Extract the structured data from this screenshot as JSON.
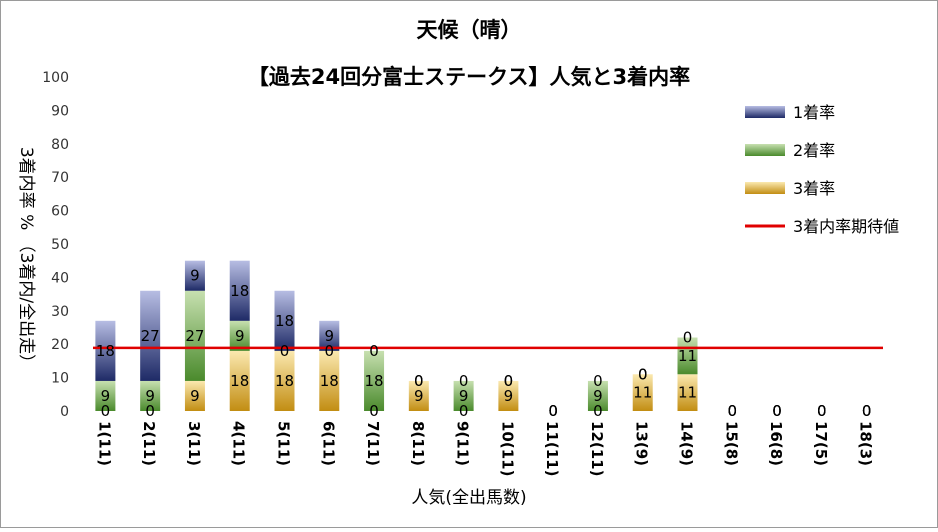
{
  "chart_data": {
    "type": "bar",
    "stacked": true,
    "title": "天候（晴）",
    "subtitle": "【過去24回分富士ステークス】人気と3着内率",
    "xlabel": "人気(全出馬数)",
    "ylabel": "3着内率 %  （3着内/全出走）",
    "ylim": [
      0,
      100
    ],
    "yticks": [
      0,
      10,
      20,
      30,
      40,
      50,
      60,
      70,
      80,
      90,
      100
    ],
    "grid": false,
    "legend_position": "right",
    "categories": [
      "1(11)",
      "2(11)",
      "3(11)",
      "4(11)",
      "5(11)",
      "6(11)",
      "7(11)",
      "8(11)",
      "9(11)",
      "10(11)",
      "11(11)",
      "12(11)",
      "13(9)",
      "14(9)",
      "15(8)",
      "16(8)",
      "17(5)",
      "18(3)"
    ],
    "series": [
      {
        "name": "3着率",
        "color": "#c9a227",
        "values": [
          0,
          0,
          9,
          18,
          18,
          18,
          0,
          9,
          0,
          9,
          0,
          0,
          11,
          11,
          0,
          0,
          0,
          0
        ]
      },
      {
        "name": "2着率",
        "color": "#5e9e3a",
        "values": [
          9,
          9,
          27,
          9,
          0,
          0,
          18,
          0,
          9,
          0,
          0,
          9,
          0,
          11,
          0,
          0,
          0,
          0
        ]
      },
      {
        "name": "1着率",
        "color": "#2f3a7c",
        "values": [
          18,
          27,
          9,
          18,
          18,
          9,
          0,
          0,
          0,
          0,
          0,
          0,
          0,
          0,
          0,
          0,
          0,
          0
        ]
      }
    ],
    "reference_line": {
      "name": "3着内率期待値",
      "color": "#e00000",
      "value": 18.9
    }
  }
}
